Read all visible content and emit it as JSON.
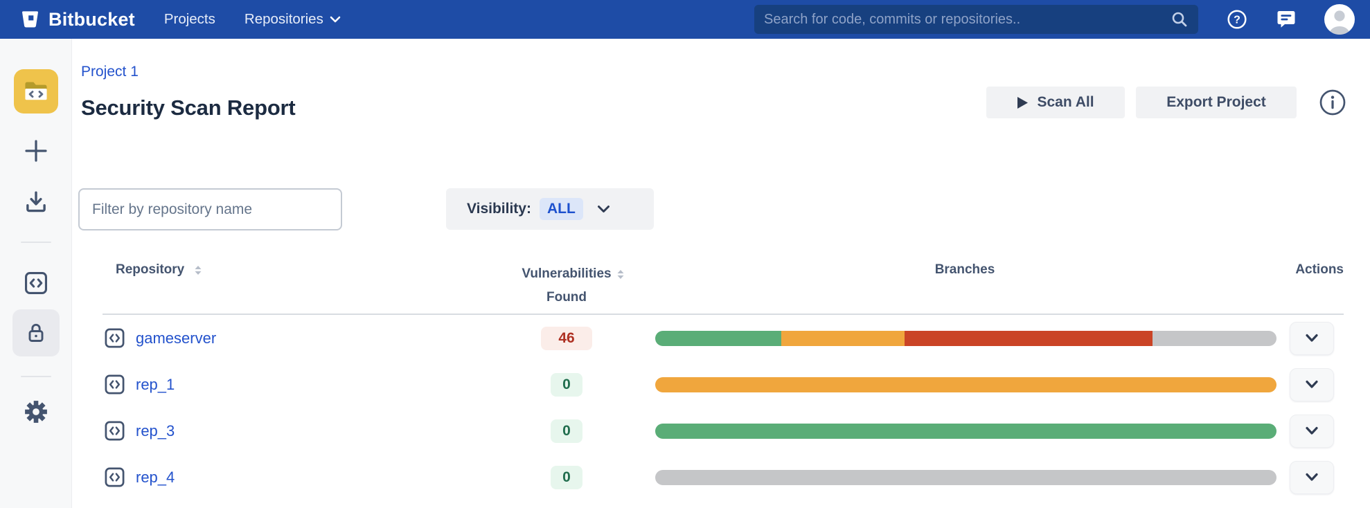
{
  "navbar": {
    "brand": "Bitbucket",
    "nav_items": [
      "Projects",
      "Repositories"
    ],
    "search": {
      "placeholder": "Search for code, commits or repositories.."
    },
    "right_icons": [
      "help-icon",
      "feedback-icon",
      "user-avatar"
    ]
  },
  "sidebar": {
    "items": [
      {
        "icon": "project-avatar-folder-code-icon",
        "selected": false
      },
      {
        "icon": "create-plus-icon",
        "selected": false
      },
      {
        "icon": "clone-download-icon",
        "selected": false
      },
      {
        "icon": "source-code-brackets-icon",
        "selected": false
      },
      {
        "icon": "security-lock-icon",
        "selected": true
      },
      {
        "icon": "settings-gear-icon",
        "selected": false
      }
    ]
  },
  "page": {
    "breadcrumb": "Project 1",
    "title": "Security Scan Report",
    "scan_all_label": "Scan All",
    "export_label": "Export Project"
  },
  "filters": {
    "repo_filter_placeholder": "Filter by repository name",
    "visibility_label": "Visibility:",
    "visibility_value": "ALL"
  },
  "table": {
    "columns": [
      {
        "label": "Repository",
        "sortable": true
      },
      {
        "label": "Vulnerabilities Found",
        "sortable": true
      },
      {
        "label": "Branches",
        "sortable": false
      },
      {
        "label": "Actions",
        "sortable": false
      }
    ],
    "rows": [
      {
        "name": "gameserver",
        "vulnerabilities": "46",
        "badge_style": "danger",
        "branch_segments": [
          {
            "color_key": "bar_green",
            "pct": 20.3
          },
          {
            "color_key": "bar_orange",
            "pct": 19.8
          },
          {
            "color_key": "bar_red",
            "pct": 39.9
          },
          {
            "color_key": "bar_gray",
            "pct": 20.0
          }
        ]
      },
      {
        "name": "rep_1",
        "vulnerabilities": "0",
        "badge_style": "ok",
        "branch_segments": [
          {
            "color_key": "bar_orange",
            "pct": 100
          }
        ]
      },
      {
        "name": "rep_3",
        "vulnerabilities": "0",
        "badge_style": "ok",
        "branch_segments": [
          {
            "color_key": "bar_green",
            "pct": 100
          }
        ]
      },
      {
        "name": "rep_4",
        "vulnerabilities": "0",
        "badge_style": "ok",
        "branch_segments": [
          {
            "color_key": "bar_gray",
            "pct": 100
          }
        ]
      }
    ]
  },
  "colors": {
    "navbar_bg": "#1E4CA6",
    "search_bg": "#17407F",
    "link_blue": "#2352CC",
    "title_color": "#1C2B41",
    "slate_icon": "#44546F",
    "button_bg": "#F1F2F4",
    "sidebar_bg": "#F7F8F9",
    "sidebar_selected_bg": "#E9EAEE",
    "avatar_yellow": "#EFC34B",
    "badge_danger_bg": "#FBEDE9",
    "badge_danger_text": "#AE3123",
    "badge_ok_bg": "#E7F6ED",
    "badge_ok_text": "#216E4E",
    "bar_green": "#5AAD77",
    "bar_orange": "#F0A63D",
    "bar_red": "#CA4426",
    "bar_gray": "#C5C6C8",
    "visibility_pill_bg": "#DCE6F9",
    "visibility_pill_text": "#1D51CE"
  }
}
